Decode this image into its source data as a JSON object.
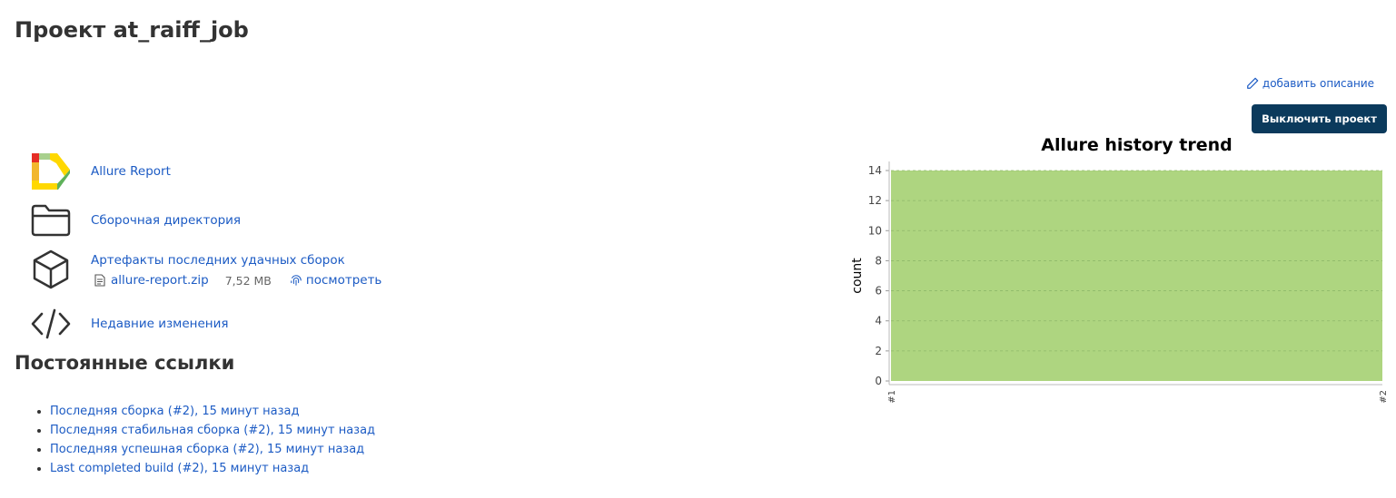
{
  "header": {
    "title": "Проект at_raiff_job"
  },
  "actions": {
    "add_description": "добавить описание",
    "disable_project": "Выключить проект"
  },
  "links": {
    "allure": "Allure Report",
    "workspace": "Сборочная директория",
    "artifacts": "Артефакты последних удачных сборок",
    "changes": "Недавние изменения"
  },
  "artifact": {
    "file": "allure-report.zip",
    "size": "7,52 MB",
    "view": "посмотреть"
  },
  "permalinks": {
    "title": "Постоянные ссылки",
    "items": [
      "Последняя сборка (#2), 15 минут назад",
      "Последняя стабильная сборка (#2), 15 минут назад",
      "Последняя успешная сборка (#2), 15 минут назад",
      "Last completed build (#2), 15 минут назад"
    ]
  },
  "colors": {
    "link": "#1c5bc4",
    "button": "#0b3a5c",
    "passed": "#aed580"
  },
  "chart_data": {
    "type": "area",
    "title": "Allure history trend",
    "ylabel": "count",
    "xlabel": "",
    "categories": [
      "#1",
      "#2"
    ],
    "ylim": [
      0,
      14
    ],
    "yticks": [
      0,
      2,
      4,
      6,
      8,
      10,
      12,
      14
    ],
    "grid": true,
    "series": [
      {
        "values": [
          14,
          14
        ],
        "color": "#aed580"
      }
    ]
  }
}
